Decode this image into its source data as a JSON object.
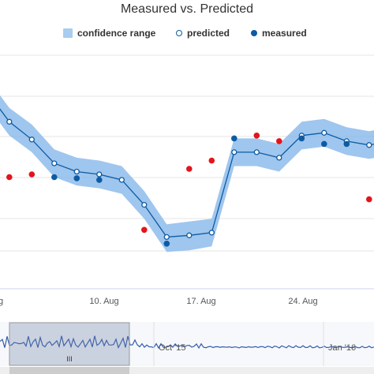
{
  "chart_data": {
    "type": "line",
    "title": "Measured vs. Predicted",
    "legend": {
      "placement": "top-center",
      "items": [
        {
          "key": "range",
          "label": "confidence range",
          "color": "#a8cdf0"
        },
        {
          "key": "predicted",
          "label": "predicted",
          "color": "#0d5ba3"
        },
        {
          "key": "measured",
          "label": "measured",
          "color": "#0d5ba3"
        }
      ]
    },
    "x_axis": {
      "type": "date",
      "ticks": [
        "10. Aug",
        "17. Aug",
        "24. Aug"
      ]
    },
    "grid": true,
    "predicted": [
      [
        "2015-08-01T06:00",
        355
      ],
      [
        "2015-08-01T18:00",
        300
      ],
      [
        "2015-08-02T06:00",
        268
      ],
      [
        "2015-08-02T18:00",
        225
      ],
      [
        "2015-08-03T06:00",
        210
      ],
      [
        "2015-08-03T18:00",
        205
      ],
      [
        "2015-08-04T06:00",
        195
      ],
      [
        "2015-08-04T18:00",
        150
      ],
      [
        "2015-08-05T06:00",
        92
      ],
      [
        "2015-08-05T18:00",
        95
      ],
      [
        "2015-08-06T06:00",
        100
      ],
      [
        "2015-08-06T18:00",
        245
      ],
      [
        "2015-08-07T06:00",
        245
      ],
      [
        "2015-08-07T18:00",
        235
      ],
      [
        "2015-08-08T06:00",
        275
      ],
      [
        "2015-08-08T18:00",
        280
      ],
      [
        "2015-08-09T06:00",
        265
      ],
      [
        "2015-08-09T18:00",
        258
      ],
      [
        "2015-08-10T06:00",
        265
      ],
      [
        "2015-08-10T18:00",
        185
      ],
      [
        "2015-08-11T06:00",
        170
      ],
      [
        "2015-08-11T18:00",
        180
      ],
      [
        "2015-08-12T06:00",
        275
      ],
      [
        "2015-08-12T18:00",
        318
      ],
      [
        "2015-08-13T06:00",
        330
      ],
      [
        "2015-08-13T18:00",
        335
      ],
      [
        "2015-08-14T06:00",
        315
      ],
      [
        "2015-08-14T18:00",
        300
      ],
      [
        "2015-08-15T06:00",
        290
      ],
      [
        "2015-08-15T18:00",
        310
      ],
      [
        "2015-08-16T06:00",
        305
      ],
      [
        "2015-08-16T18:00",
        230
      ],
      [
        "2015-08-17T06:00",
        190
      ],
      [
        "2015-08-17T18:00",
        185
      ],
      [
        "2015-08-18T06:00",
        265
      ],
      [
        "2015-08-18T18:00",
        340
      ],
      [
        "2015-08-19T06:00",
        345
      ],
      [
        "2015-08-19T18:00",
        335
      ],
      [
        "2015-08-20T06:00",
        320
      ],
      [
        "2015-08-20T18:00",
        300
      ]
    ],
    "range": [
      [
        "2015-08-01T06:00",
        330,
        380
      ],
      [
        "2015-08-01T18:00",
        275,
        325
      ],
      [
        "2015-08-02T06:00",
        245,
        295
      ],
      [
        "2015-08-02T18:00",
        200,
        250
      ],
      [
        "2015-08-03T06:00",
        185,
        235
      ],
      [
        "2015-08-03T18:00",
        180,
        230
      ],
      [
        "2015-08-04T06:00",
        170,
        220
      ],
      [
        "2015-08-04T18:00",
        125,
        175
      ],
      [
        "2015-08-05T06:00",
        65,
        115
      ],
      [
        "2015-08-05T18:00",
        68,
        120
      ],
      [
        "2015-08-06T06:00",
        75,
        125
      ],
      [
        "2015-08-06T18:00",
        220,
        270
      ],
      [
        "2015-08-07T06:00",
        220,
        270
      ],
      [
        "2015-08-07T18:00",
        210,
        260
      ],
      [
        "2015-08-08T06:00",
        250,
        300
      ],
      [
        "2015-08-08T18:00",
        255,
        305
      ],
      [
        "2015-08-09T06:00",
        240,
        290
      ],
      [
        "2015-08-09T18:00",
        233,
        283
      ],
      [
        "2015-08-10T06:00",
        240,
        290
      ],
      [
        "2015-08-10T18:00",
        158,
        210
      ],
      [
        "2015-08-11T06:00",
        142,
        198
      ],
      [
        "2015-08-11T18:00",
        150,
        210
      ],
      [
        "2015-08-12T06:00",
        245,
        305
      ],
      [
        "2015-08-12T18:00",
        288,
        350
      ],
      [
        "2015-08-13T06:00",
        300,
        362
      ],
      [
        "2015-08-13T18:00",
        305,
        367
      ],
      [
        "2015-08-14T06:00",
        285,
        347
      ],
      [
        "2015-08-14T18:00",
        268,
        332
      ],
      [
        "2015-08-15T06:00",
        258,
        322
      ],
      [
        "2015-08-15T18:00",
        278,
        342
      ],
      [
        "2015-08-16T06:00",
        272,
        338
      ],
      [
        "2015-08-16T18:00",
        195,
        265
      ],
      [
        "2015-08-17T06:00",
        150,
        230
      ],
      [
        "2015-08-17T18:00",
        145,
        225
      ],
      [
        "2015-08-18T06:00",
        230,
        300
      ],
      [
        "2015-08-18T18:00",
        310,
        370
      ],
      [
        "2015-08-19T06:00",
        315,
        375
      ],
      [
        "2015-08-19T18:00",
        305,
        365
      ],
      [
        "2015-08-20T06:00",
        290,
        350
      ],
      [
        "2015-08-20T18:00",
        270,
        330
      ]
    ],
    "measured": [
      [
        "2015-08-01T18:00",
        200
      ],
      [
        "2015-08-02T06:00",
        205
      ],
      [
        "2015-08-02T18:00",
        200
      ],
      [
        "2015-08-03T06:00",
        198
      ],
      [
        "2015-08-03T18:00",
        195
      ],
      [
        "2015-08-04T18:00",
        105
      ],
      [
        "2015-08-05T06:00",
        80
      ],
      [
        "2015-08-05T18:00",
        215
      ],
      [
        "2015-08-06T06:00",
        230
      ],
      [
        "2015-08-06T18:00",
        270
      ],
      [
        "2015-08-07T06:00",
        275
      ],
      [
        "2015-08-07T18:00",
        265
      ],
      [
        "2015-08-08T06:00",
        270
      ],
      [
        "2015-08-08T18:00",
        260
      ],
      [
        "2015-08-09T06:00",
        260
      ],
      [
        "2015-08-09T18:00",
        160
      ],
      [
        "2015-08-10T06:00",
        195
      ],
      [
        "2015-08-10T18:00",
        300
      ],
      [
        "2015-08-11T06:00",
        300
      ],
      [
        "2015-08-11T18:00",
        285
      ],
      [
        "2015-08-12T06:00",
        280
      ],
      [
        "2015-08-12T18:00",
        270
      ],
      [
        "2015-08-13T06:00",
        190
      ],
      [
        "2015-08-13T18:00",
        155
      ],
      [
        "2015-08-14T06:00",
        230
      ],
      [
        "2015-08-14T18:00",
        240
      ],
      [
        "2015-08-15T06:00",
        255
      ],
      [
        "2015-08-15T18:00",
        235
      ],
      [
        "2015-08-16T06:00",
        225
      ]
    ],
    "navigator": {
      "ticks": [
        "Oct '15",
        "Jan '16"
      ],
      "handle_glyph": "III"
    }
  }
}
